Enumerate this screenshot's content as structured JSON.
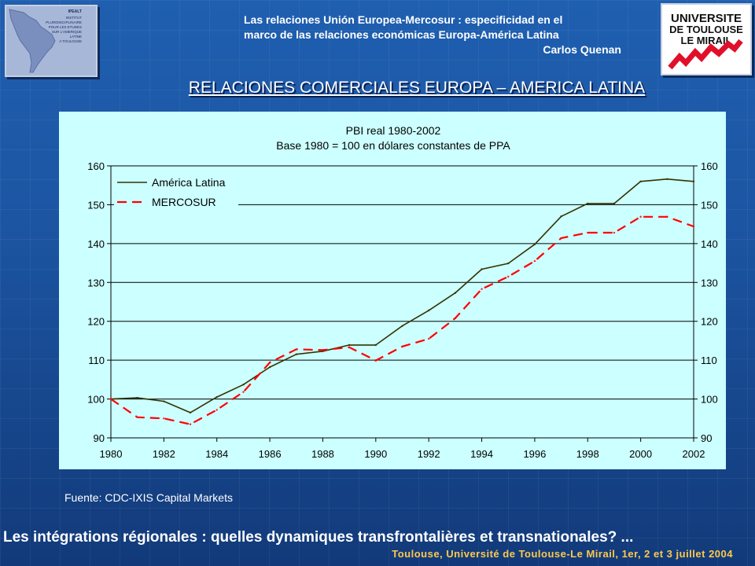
{
  "header": {
    "line1": "Las relaciones Unión Europea-Mercosur : especificidad en el",
    "line2": "marco de las relaciones económicas Europa-América Latina",
    "author": "Carlos Quenan"
  },
  "logo_left": {
    "text": [
      "IPEALT",
      "INSTITUT",
      "PLURIDISCIPLINAIRE",
      "POUR LES ETUDES",
      "SUR L'AMERIQUE",
      "LATINE",
      "A TOULOUSE"
    ]
  },
  "logo_right": {
    "lines": [
      "UNIVERSITE",
      "DE TOULOUSE",
      "LE MIRAIL"
    ]
  },
  "main_title": "RELACIONES COMERCIALES EUROPA – AMERICA LATINA",
  "chart_data": {
    "type": "line",
    "title": "PBI real 1980-2002",
    "subtitle": "Base 1980 = 100 en dólares constantes de PPA",
    "x": [
      1980,
      1981,
      1982,
      1983,
      1984,
      1985,
      1986,
      1987,
      1988,
      1989,
      1990,
      1991,
      1992,
      1993,
      1994,
      1995,
      1996,
      1997,
      1998,
      1999,
      2000,
      2001,
      2002
    ],
    "series": [
      {
        "name": "América Latina",
        "style": "solid",
        "color": "#333300",
        "values": [
          100,
          100.3,
          99.4,
          96.5,
          100.5,
          103.7,
          108.2,
          111.5,
          112.3,
          113.9,
          113.9,
          118.8,
          122.8,
          127.3,
          133.4,
          134.9,
          139.8,
          147,
          150.3,
          150.3,
          156,
          156.6,
          156
        ]
      },
      {
        "name": "MERCOSUR",
        "style": "dashed",
        "color": "#ff0000",
        "values": [
          100,
          95.3,
          95,
          93.5,
          97.2,
          101.8,
          109.4,
          112.8,
          112.6,
          113.3,
          109.9,
          113.5,
          115.5,
          120.8,
          128.3,
          131.5,
          135.5,
          141.4,
          142.8,
          142.8,
          146.9,
          146.9,
          144.4
        ]
      }
    ],
    "xticks": [
      "1980",
      "1982",
      "1984",
      "1986",
      "1988",
      "1990",
      "1992",
      "1994",
      "1996",
      "1998",
      "2000",
      "2002"
    ],
    "yticks": [
      90,
      100,
      110,
      120,
      130,
      140,
      150,
      160
    ],
    "ylim": [
      90,
      160
    ],
    "xlim": [
      1980,
      2002
    ],
    "grid": "horizontal",
    "secondary_y_axis": true,
    "legend_position": "top-left",
    "background": "#ccffff"
  },
  "source_note": "Fuente: CDC-IXIS Capital Markets",
  "footer": {
    "main": "Les intégrations régionales : quelles dynamiques transfrontalières et transnationales? ...",
    "sub": "Toulouse, Université de Toulouse-Le Mirail, 1er, 2 et 3 juillet 2004"
  }
}
